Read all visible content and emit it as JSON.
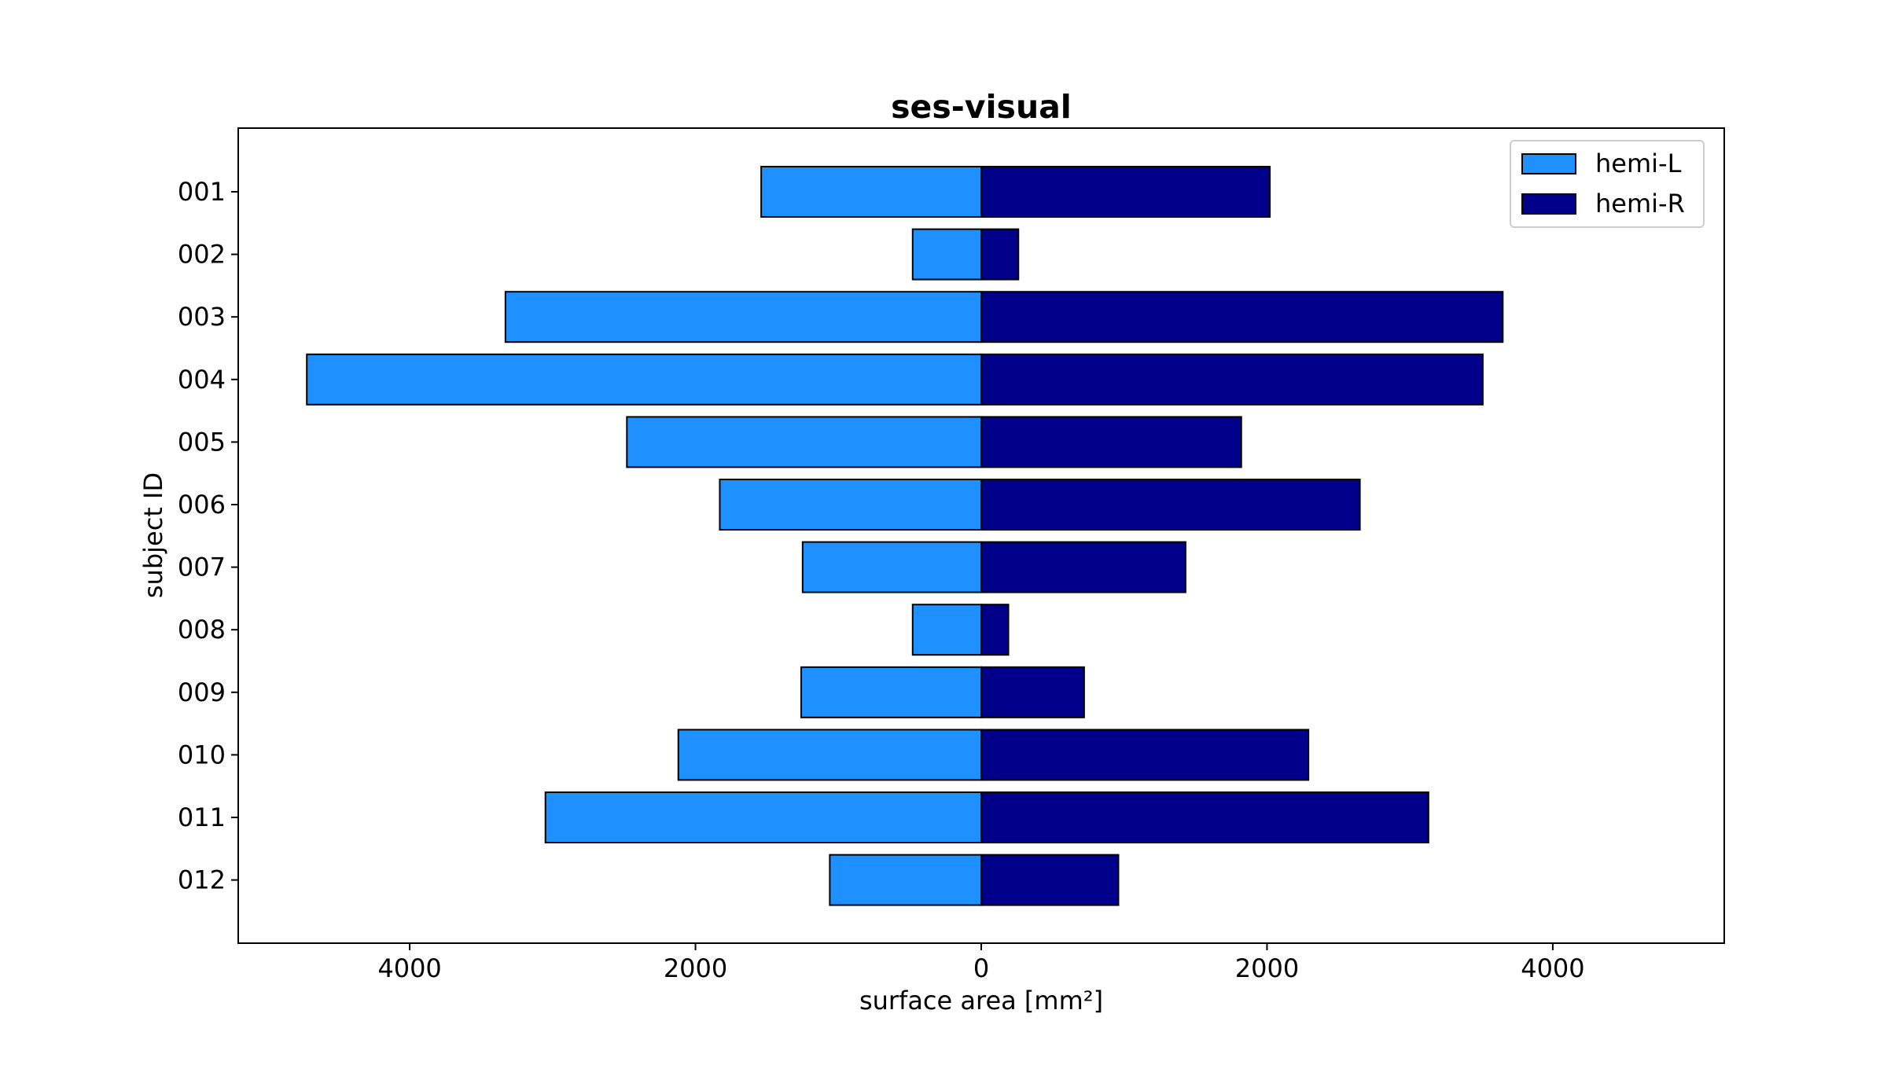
{
  "chart_data": {
    "type": "bar",
    "orientation": "horizontal",
    "layout": "diverging",
    "title": "ses-visual",
    "xlabel": "surface area [mm²]",
    "ylabel": "subject ID",
    "xlim": [
      -5200,
      5200
    ],
    "x_ticks": [
      -4000,
      -2000,
      0,
      2000,
      4000
    ],
    "x_tick_labels": [
      "4000",
      "2000",
      "0",
      "2000",
      "4000"
    ],
    "grid": false,
    "legend_position": "top-right",
    "categories": [
      "001",
      "002",
      "003",
      "004",
      "005",
      "006",
      "007",
      "008",
      "009",
      "010",
      "011",
      "012"
    ],
    "series": [
      {
        "name": "hemi-L",
        "direction": "left",
        "color": "#1e90ff",
        "values": [
          1540,
          480,
          3330,
          4720,
          2480,
          1830,
          1250,
          480,
          1260,
          2120,
          3050,
          1060
        ]
      },
      {
        "name": "hemi-R",
        "direction": "right",
        "color": "#00008b",
        "values": [
          2020,
          260,
          3650,
          3510,
          1820,
          2650,
          1430,
          190,
          720,
          2290,
          3130,
          960
        ]
      }
    ]
  }
}
